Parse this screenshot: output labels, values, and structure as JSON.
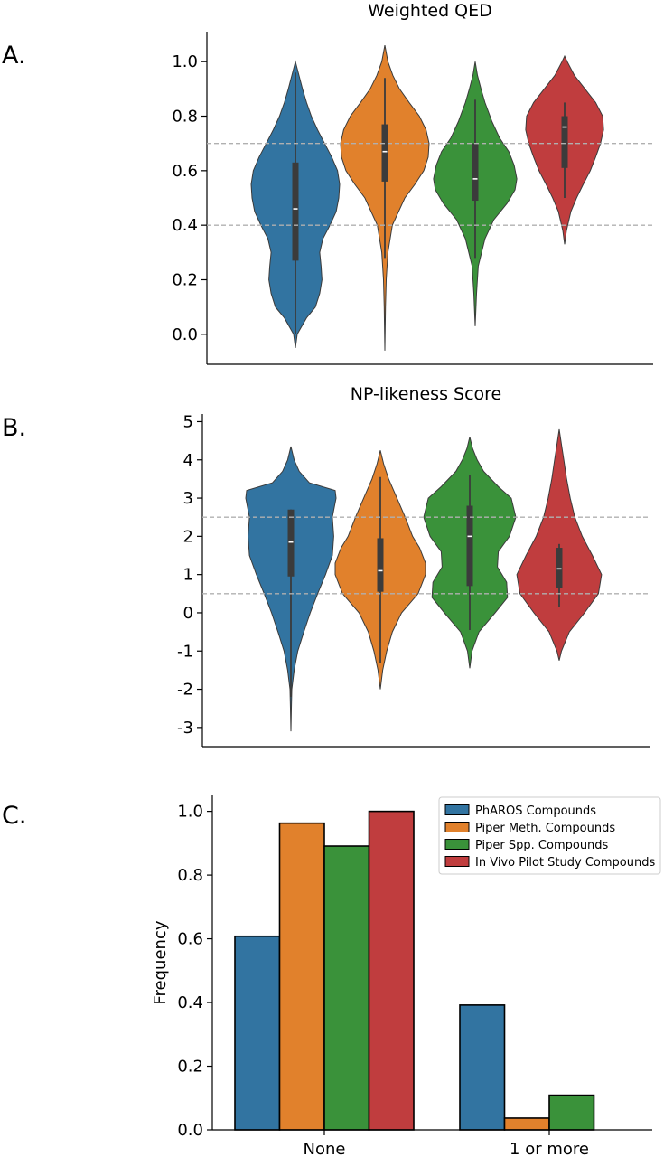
{
  "colors": {
    "series": [
      "#3274a1",
      "#e1812c",
      "#3a923a",
      "#c03d3e"
    ],
    "reference_line": "#b0b0b0",
    "box": "#3b3b3b",
    "median": "#ffffff"
  },
  "panel_labels": [
    "A.",
    "B.",
    "C."
  ],
  "chart_data": [
    {
      "type": "violin",
      "panel": "A.",
      "title": "Weighted QED",
      "ylim": [
        -0.11,
        1.11
      ],
      "yticks": [
        0.0,
        0.2,
        0.4,
        0.6,
        0.8,
        1.0
      ],
      "ytick_labels": [
        "0.0",
        "0.2",
        "0.4",
        "0.6",
        "0.8",
        "1.0"
      ],
      "reference_lines": [
        0.4,
        0.7
      ],
      "series": [
        {
          "extent": [
            -0.05,
            1.0
          ],
          "whisker": [
            0.0,
            0.96
          ],
          "box": [
            0.27,
            0.63
          ],
          "median": 0.46,
          "density": [
            [
              -0.05,
              0.0
            ],
            [
              0.0,
              0.04
            ],
            [
              0.06,
              0.25
            ],
            [
              0.1,
              0.45
            ],
            [
              0.15,
              0.55
            ],
            [
              0.2,
              0.6
            ],
            [
              0.25,
              0.58
            ],
            [
              0.3,
              0.55
            ],
            [
              0.35,
              0.62
            ],
            [
              0.4,
              0.78
            ],
            [
              0.45,
              0.92
            ],
            [
              0.5,
              0.98
            ],
            [
              0.55,
              1.0
            ],
            [
              0.6,
              0.95
            ],
            [
              0.65,
              0.82
            ],
            [
              0.7,
              0.66
            ],
            [
              0.75,
              0.5
            ],
            [
              0.8,
              0.36
            ],
            [
              0.85,
              0.25
            ],
            [
              0.9,
              0.16
            ],
            [
              0.95,
              0.08
            ],
            [
              1.0,
              0.0
            ]
          ]
        },
        {
          "extent": [
            -0.06,
            1.06
          ],
          "whisker": [
            0.28,
            0.94
          ],
          "box": [
            0.56,
            0.77
          ],
          "median": 0.67,
          "density": [
            [
              -0.06,
              0.0
            ],
            [
              0.1,
              0.015
            ],
            [
              0.2,
              0.03
            ],
            [
              0.3,
              0.07
            ],
            [
              0.4,
              0.17
            ],
            [
              0.5,
              0.45
            ],
            [
              0.55,
              0.68
            ],
            [
              0.6,
              0.88
            ],
            [
              0.65,
              0.98
            ],
            [
              0.7,
              1.0
            ],
            [
              0.75,
              0.93
            ],
            [
              0.8,
              0.78
            ],
            [
              0.85,
              0.55
            ],
            [
              0.9,
              0.33
            ],
            [
              0.95,
              0.18
            ],
            [
              1.0,
              0.07
            ],
            [
              1.06,
              0.0
            ]
          ]
        },
        {
          "extent": [
            0.03,
            1.0
          ],
          "whisker": [
            0.28,
            0.86
          ],
          "box": [
            0.49,
            0.7
          ],
          "median": 0.57,
          "density": [
            [
              0.03,
              0.0
            ],
            [
              0.15,
              0.03
            ],
            [
              0.25,
              0.07
            ],
            [
              0.35,
              0.22
            ],
            [
              0.42,
              0.42
            ],
            [
              0.48,
              0.72
            ],
            [
              0.53,
              0.9
            ],
            [
              0.57,
              0.94
            ],
            [
              0.62,
              0.88
            ],
            [
              0.67,
              0.76
            ],
            [
              0.72,
              0.55
            ],
            [
              0.78,
              0.38
            ],
            [
              0.85,
              0.22
            ],
            [
              0.9,
              0.13
            ],
            [
              0.95,
              0.05
            ],
            [
              1.0,
              0.0
            ]
          ]
        },
        {
          "extent": [
            0.33,
            1.02
          ],
          "whisker": [
            0.5,
            0.85
          ],
          "box": [
            0.61,
            0.8
          ],
          "median": 0.76,
          "density": [
            [
              0.33,
              0.0
            ],
            [
              0.38,
              0.04
            ],
            [
              0.45,
              0.14
            ],
            [
              0.5,
              0.27
            ],
            [
              0.55,
              0.42
            ],
            [
              0.6,
              0.58
            ],
            [
              0.65,
              0.7
            ],
            [
              0.7,
              0.81
            ],
            [
              0.75,
              0.88
            ],
            [
              0.8,
              0.86
            ],
            [
              0.85,
              0.7
            ],
            [
              0.9,
              0.46
            ],
            [
              0.95,
              0.22
            ],
            [
              1.0,
              0.06
            ],
            [
              1.02,
              0.0
            ]
          ]
        }
      ]
    },
    {
      "type": "violin",
      "panel": "B.",
      "title": "NP-likeness Score",
      "ylim": [
        -3.5,
        5.2
      ],
      "yticks": [
        -3,
        -2,
        -1,
        0,
        1,
        2,
        3,
        4,
        5
      ],
      "ytick_labels": [
        "-3",
        "-2",
        "-1",
        "0",
        "1",
        "2",
        "3",
        "4",
        "5"
      ],
      "reference_lines": [
        0.5,
        2.5
      ],
      "series": [
        {
          "extent": [
            -3.1,
            4.35
          ],
          "whisker": [
            -2.2,
            2.7
          ],
          "box": [
            0.95,
            2.7
          ],
          "median": 1.85,
          "density": [
            [
              -3.1,
              0.0
            ],
            [
              -2.5,
              0.01
            ],
            [
              -2.0,
              0.02
            ],
            [
              -1.5,
              0.07
            ],
            [
              -1.0,
              0.15
            ],
            [
              -0.5,
              0.28
            ],
            [
              0.0,
              0.42
            ],
            [
              0.5,
              0.58
            ],
            [
              1.0,
              0.75
            ],
            [
              1.5,
              0.9
            ],
            [
              2.0,
              0.93
            ],
            [
              2.5,
              0.9
            ],
            [
              3.0,
              0.98
            ],
            [
              3.2,
              0.96
            ],
            [
              3.4,
              0.4
            ],
            [
              3.7,
              0.18
            ],
            [
              4.0,
              0.07
            ],
            [
              4.35,
              0.0
            ]
          ]
        },
        {
          "extent": [
            -2.0,
            4.25
          ],
          "whisker": [
            -1.3,
            3.55
          ],
          "box": [
            0.55,
            1.95
          ],
          "median": 1.1,
          "density": [
            [
              -2.0,
              0.0
            ],
            [
              -1.5,
              0.05
            ],
            [
              -1.0,
              0.14
            ],
            [
              -0.5,
              0.26
            ],
            [
              0.0,
              0.46
            ],
            [
              0.5,
              0.82
            ],
            [
              1.0,
              0.98
            ],
            [
              1.3,
              0.98
            ],
            [
              1.7,
              0.85
            ],
            [
              2.0,
              0.7
            ],
            [
              2.5,
              0.54
            ],
            [
              3.0,
              0.36
            ],
            [
              3.5,
              0.18
            ],
            [
              3.9,
              0.07
            ],
            [
              4.25,
              0.0
            ]
          ]
        },
        {
          "extent": [
            -1.45,
            4.6
          ],
          "whisker": [
            -0.45,
            3.6
          ],
          "box": [
            0.7,
            2.8
          ],
          "median": 2.0,
          "density": [
            [
              -1.45,
              0.0
            ],
            [
              -1.0,
              0.05
            ],
            [
              -0.5,
              0.2
            ],
            [
              0.0,
              0.55
            ],
            [
              0.4,
              0.82
            ],
            [
              0.8,
              0.8
            ],
            [
              1.2,
              0.6
            ],
            [
              1.6,
              0.62
            ],
            [
              2.0,
              0.86
            ],
            [
              2.5,
              1.0
            ],
            [
              3.0,
              0.9
            ],
            [
              3.3,
              0.62
            ],
            [
              3.7,
              0.3
            ],
            [
              4.0,
              0.16
            ],
            [
              4.3,
              0.06
            ],
            [
              4.6,
              0.0
            ]
          ]
        },
        {
          "extent": [
            -1.25,
            4.8
          ],
          "whisker": [
            0.15,
            1.8
          ],
          "box": [
            0.65,
            1.7
          ],
          "median": 1.15,
          "density": [
            [
              -1.25,
              0.0
            ],
            [
              -1.0,
              0.05
            ],
            [
              -0.5,
              0.22
            ],
            [
              0.0,
              0.55
            ],
            [
              0.5,
              0.85
            ],
            [
              1.0,
              0.92
            ],
            [
              1.5,
              0.72
            ],
            [
              2.0,
              0.5
            ],
            [
              2.5,
              0.34
            ],
            [
              3.0,
              0.24
            ],
            [
              3.5,
              0.16
            ],
            [
              4.0,
              0.1
            ],
            [
              4.4,
              0.05
            ],
            [
              4.8,
              0.0
            ]
          ]
        }
      ]
    },
    {
      "type": "bar",
      "panel": "C.",
      "categories": [
        "None",
        "1 or more"
      ],
      "ylabel": "Frequency",
      "ylim": [
        0,
        1.05
      ],
      "yticks": [
        0.0,
        0.2,
        0.4,
        0.6,
        0.8,
        1.0
      ],
      "ytick_labels": [
        "0.0",
        "0.2",
        "0.4",
        "0.6",
        "0.8",
        "1.0"
      ],
      "legend_position": "top-right",
      "series": [
        {
          "name": "PhAROS Compounds",
          "values": [
            0.608,
            0.392
          ]
        },
        {
          "name": "Piper Meth. Compounds",
          "values": [
            0.963,
            0.037
          ]
        },
        {
          "name": "Piper Spp. Compounds",
          "values": [
            0.891,
            0.109
          ]
        },
        {
          "name": "In Vivo Pilot Study Compounds",
          "values": [
            1.0,
            0.0
          ]
        }
      ]
    }
  ]
}
